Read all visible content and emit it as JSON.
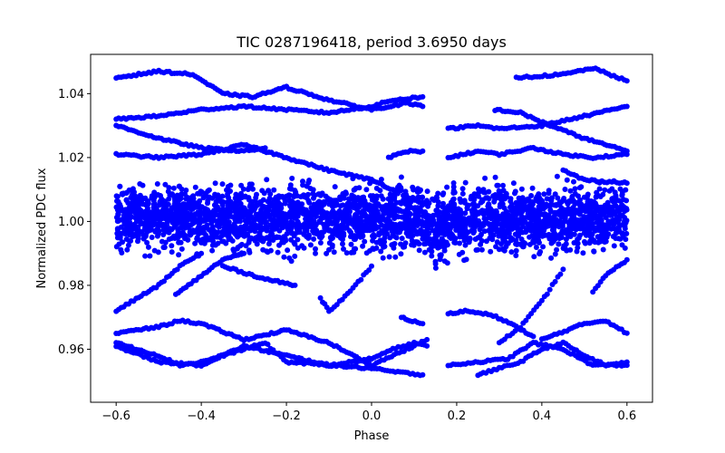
{
  "chart_data": {
    "type": "scatter",
    "title": "TIC 0287196418, period 3.6950 days",
    "xlabel": "Phase",
    "ylabel": "Normalized PDC flux",
    "xlim": [
      -0.66,
      0.66
    ],
    "ylim": [
      0.9434,
      1.0523
    ],
    "xticks": [
      -0.6,
      -0.4,
      -0.2,
      0.0,
      0.2,
      0.4,
      0.6
    ],
    "xtick_labels": [
      "−0.6",
      "−0.4",
      "−0.2",
      "0.0",
      "0.2",
      "0.4",
      "0.6"
    ],
    "yticks": [
      0.96,
      0.98,
      1.0,
      1.02,
      1.04
    ],
    "ytick_labels": [
      "0.96",
      "0.98",
      "1.00",
      "1.02",
      "1.04"
    ],
    "grid": false,
    "marker_color": "#0000ff",
    "period_days": 3.695,
    "dip": {
      "center_phase": 0.155,
      "half_width_phase": 0.035
    },
    "core_band": {
      "phase_range": [
        -0.6,
        0.6
      ],
      "flux_range": [
        0.989,
        1.013
      ]
    },
    "series": [
      {
        "name": "track-a",
        "x": [
          -0.6,
          -0.5,
          -0.42,
          -0.35,
          -0.28,
          -0.2,
          -0.1,
          0.0,
          0.04,
          0.08,
          0.12
        ],
        "y": [
          1.045,
          1.047,
          1.046,
          1.04,
          1.039,
          1.042,
          1.038,
          1.035,
          1.036,
          1.037,
          1.036
        ]
      },
      {
        "name": "track-b",
        "x": [
          0.34,
          0.45,
          0.52,
          0.6
        ],
        "y": [
          1.045,
          1.046,
          1.048,
          1.044
        ]
      },
      {
        "name": "track-c",
        "x": [
          -0.6,
          -0.5,
          -0.4,
          -0.3,
          -0.2,
          -0.1,
          0.0,
          0.05,
          0.12
        ],
        "y": [
          1.032,
          1.033,
          1.035,
          1.036,
          1.035,
          1.034,
          1.036,
          1.038,
          1.039
        ]
      },
      {
        "name": "track-d",
        "x": [
          -0.6,
          -0.5,
          -0.4,
          -0.3,
          -0.25
        ],
        "y": [
          1.03,
          1.026,
          1.023,
          1.022,
          1.023
        ]
      },
      {
        "name": "track-e",
        "x": [
          -0.6,
          -0.5,
          -0.4,
          -0.3,
          -0.2,
          -0.1,
          0.0,
          0.05
        ],
        "y": [
          1.021,
          1.02,
          1.021,
          1.024,
          1.02,
          1.016,
          1.013,
          1.01
        ]
      },
      {
        "name": "track-f",
        "x": [
          0.04,
          0.08,
          0.12
        ],
        "y": [
          1.02,
          1.022,
          1.022
        ]
      },
      {
        "name": "track-g",
        "x": [
          0.18,
          0.25,
          0.3,
          0.4,
          0.5,
          0.6
        ],
        "y": [
          1.029,
          1.03,
          1.029,
          1.03,
          1.033,
          1.036
        ]
      },
      {
        "name": "track-h",
        "x": [
          0.29,
          0.35,
          0.42,
          0.5,
          0.6
        ],
        "y": [
          1.035,
          1.034,
          1.03,
          1.026,
          1.022
        ]
      },
      {
        "name": "track-i",
        "x": [
          0.18,
          0.25,
          0.3,
          0.38,
          0.45,
          0.52,
          0.6
        ],
        "y": [
          1.02,
          1.022,
          1.021,
          1.023,
          1.021,
          1.02,
          1.021
        ]
      },
      {
        "name": "track-j",
        "x": [
          0.45,
          0.5,
          0.6
        ],
        "y": [
          1.016,
          1.013,
          1.012
        ]
      },
      {
        "name": "track-k",
        "x": [
          -0.6,
          -0.5,
          -0.45,
          -0.4
        ],
        "y": [
          0.972,
          0.98,
          0.986,
          0.99
        ]
      },
      {
        "name": "track-l",
        "x": [
          -0.46,
          -0.4,
          -0.35,
          -0.3
        ],
        "y": [
          0.977,
          0.983,
          0.988,
          0.99
        ]
      },
      {
        "name": "track-m",
        "x": [
          -0.35,
          -0.3,
          -0.25,
          -0.18
        ],
        "y": [
          0.986,
          0.984,
          0.982,
          0.98
        ]
      },
      {
        "name": "track-n",
        "x": [
          -0.12,
          -0.1,
          -0.05,
          0.0
        ],
        "y": [
          0.976,
          0.972,
          0.978,
          0.986
        ]
      },
      {
        "name": "track-o",
        "x": [
          0.3,
          0.35,
          0.4,
          0.45
        ],
        "y": [
          0.962,
          0.967,
          0.975,
          0.985
        ]
      },
      {
        "name": "track-p",
        "x": [
          0.52,
          0.55,
          0.6
        ],
        "y": [
          0.978,
          0.983,
          0.988
        ]
      },
      {
        "name": "track-q",
        "x": [
          0.07,
          0.09,
          0.12
        ],
        "y": [
          0.97,
          0.969,
          0.968
        ]
      },
      {
        "name": "track-r",
        "x": [
          0.18,
          0.22,
          0.28,
          0.34,
          0.38
        ],
        "y": [
          0.971,
          0.972,
          0.971,
          0.967,
          0.964
        ]
      },
      {
        "name": "track-s",
        "x": [
          -0.6,
          -0.5,
          -0.45,
          -0.4,
          -0.3,
          -0.2,
          -0.1,
          0.0,
          0.1,
          0.13
        ],
        "y": [
          0.965,
          0.967,
          0.969,
          0.968,
          0.963,
          0.966,
          0.962,
          0.955,
          0.961,
          0.963
        ]
      },
      {
        "name": "track-t",
        "x": [
          0.0,
          0.05,
          0.1,
          0.13
        ],
        "y": [
          0.957,
          0.96,
          0.962,
          0.961
        ]
      },
      {
        "name": "track-u",
        "x": [
          0.4,
          0.5,
          0.55,
          0.6
        ],
        "y": [
          0.963,
          0.968,
          0.969,
          0.965
        ]
      },
      {
        "name": "track-v",
        "x": [
          -0.6,
          -0.5,
          -0.45,
          -0.4,
          -0.3,
          -0.25,
          -0.2,
          -0.1,
          0.0,
          0.05,
          0.12
        ],
        "y": [
          0.962,
          0.958,
          0.955,
          0.956,
          0.96,
          0.962,
          0.956,
          0.955,
          0.954,
          0.953,
          0.952
        ]
      },
      {
        "name": "track-w",
        "x": [
          -0.6,
          -0.5,
          -0.4,
          -0.3,
          -0.2,
          -0.1,
          0.0
        ],
        "y": [
          0.961,
          0.956,
          0.955,
          0.961,
          0.958,
          0.955,
          0.957
        ]
      },
      {
        "name": "track-x",
        "x": [
          0.18,
          0.25,
          0.32,
          0.38,
          0.45,
          0.52,
          0.6
        ],
        "y": [
          0.955,
          0.956,
          0.957,
          0.962,
          0.96,
          0.955,
          0.955
        ]
      },
      {
        "name": "track-y",
        "x": [
          0.25,
          0.3,
          0.35,
          0.4,
          0.45,
          0.5,
          0.55,
          0.6
        ],
        "y": [
          0.952,
          0.954,
          0.956,
          0.96,
          0.962,
          0.958,
          0.955,
          0.956
        ]
      }
    ]
  }
}
